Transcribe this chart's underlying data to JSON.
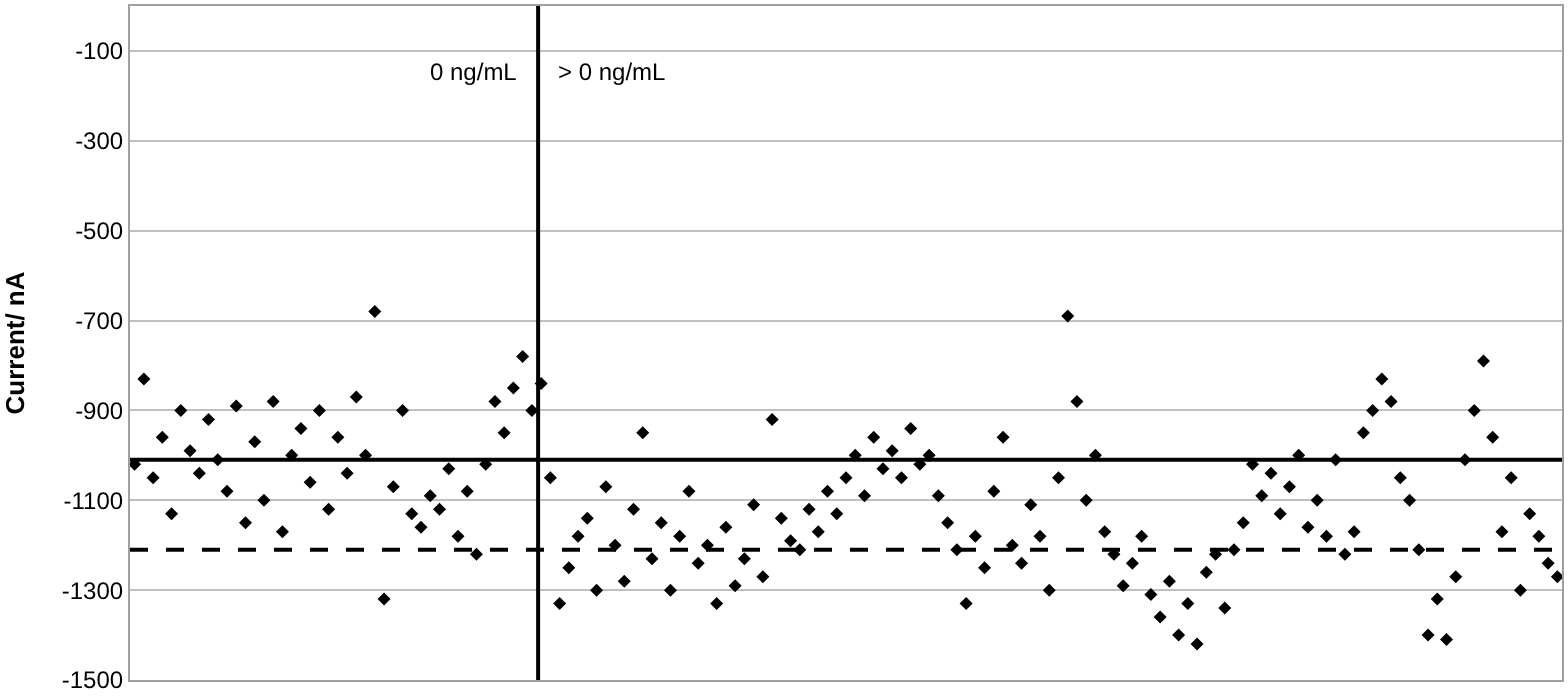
{
  "chart_data": {
    "type": "scatter",
    "ylabel": "Current/ nA",
    "categories": [
      null,
      null,
      null,
      null,
      null,
      null,
      null,
      null,
      null,
      null,
      null,
      null,
      null,
      null,
      null,
      null,
      null,
      null,
      null,
      null,
      null,
      null,
      null,
      null,
      null,
      null,
      null,
      null,
      null,
      null,
      null,
      null,
      null,
      null,
      null,
      null,
      null,
      null,
      null,
      null,
      null,
      null,
      null,
      null,
      null,
      null,
      null,
      null,
      null,
      null,
      null,
      null,
      null,
      null,
      null,
      null,
      null,
      null,
      null,
      null,
      null,
      null,
      null,
      null,
      null,
      null,
      null,
      null,
      null,
      null,
      null,
      null,
      null,
      null,
      null,
      null,
      null,
      null,
      null,
      null,
      null,
      null,
      null,
      null,
      null,
      null,
      null,
      null,
      null,
      null,
      null,
      null,
      null,
      null,
      null,
      null,
      null,
      null,
      null,
      null,
      null,
      null,
      null,
      null,
      null,
      null,
      null,
      null,
      null,
      null,
      null,
      null,
      null,
      null,
      null,
      null,
      null,
      null,
      null,
      null,
      null,
      null,
      null,
      null,
      null,
      null,
      null,
      null,
      null,
      null,
      null,
      null,
      null,
      null,
      null,
      null,
      null,
      null,
      null,
      null,
      null,
      null,
      null,
      null,
      null,
      null,
      null,
      null,
      null,
      null,
      null,
      null,
      null,
      null,
      null
    ],
    "series": [
      {
        "color": "#000000",
        "values": [
          -1020,
          -830,
          -1050,
          -960,
          -1130,
          -900,
          -990,
          -1040,
          -920,
          -1010,
          -1080,
          -890,
          -1150,
          -970,
          -1100,
          -880,
          -1170,
          -1000,
          -940,
          -1060,
          -900,
          -1120,
          -960,
          -1040,
          -870,
          -1000,
          -680,
          -1320,
          -1070,
          -900,
          -1130,
          -1160,
          -1090,
          -1120,
          -1030,
          -1180,
          -1080,
          -1220,
          -1020,
          -880,
          -950,
          -850,
          -780,
          -900,
          -840,
          -1050,
          -1330,
          -1250,
          -1180,
          -1140,
          -1300,
          -1070,
          -1200,
          -1280,
          -1120,
          -950,
          -1230,
          -1150,
          -1300,
          -1180,
          -1080,
          -1240,
          -1200,
          -1330,
          -1160,
          -1290,
          -1230,
          -1110,
          -1270,
          -920,
          -1140,
          -1190,
          -1210,
          -1120,
          -1170,
          -1080,
          -1130,
          -1050,
          -1000,
          -1090,
          -960,
          -1030,
          -990,
          -1050,
          -940,
          -1020,
          -1000,
          -1090,
          -1150,
          -1210,
          -1330,
          -1180,
          -1250,
          -1080,
          -960,
          -1200,
          -1240,
          -1110,
          -1180,
          -1300,
          -1050,
          -690,
          -880,
          -1100,
          -1000,
          -1170,
          -1220,
          -1290,
          -1240,
          -1180,
          -1310,
          -1360,
          -1280,
          -1400,
          -1330,
          -1420,
          -1260,
          -1220,
          -1340,
          -1210,
          -1150,
          -1020,
          -1090,
          -1040,
          -1130,
          -1070,
          -1000,
          -1160,
          -1100,
          -1180,
          -1010,
          -1220,
          -1170,
          -950,
          -900,
          -830,
          -880,
          -1050,
          -1100,
          -1210,
          -1400,
          -1320,
          -1410,
          -1270,
          -1010,
          -900,
          -790,
          -960,
          -1170,
          -1050,
          -1300,
          -1130,
          -1180,
          -1240,
          -1270
        ]
      }
    ],
    "marker": "diamond",
    "ylim": [
      -1500,
      0
    ],
    "yticks": [
      -1500,
      -1300,
      -1100,
      -900,
      -700,
      -500,
      -300,
      -100
    ],
    "grid": "y",
    "tick_labels": "y",
    "ref_lines": [
      {
        "axis": "y",
        "value": -1010,
        "color": "#000000",
        "line_style": "solid"
      },
      {
        "axis": "y",
        "value": -1210,
        "color": "#000000",
        "line_style": "dashed"
      }
    ],
    "annotations": [
      "0 ng/mL",
      "> 0 ng/mL"
    ]
  }
}
